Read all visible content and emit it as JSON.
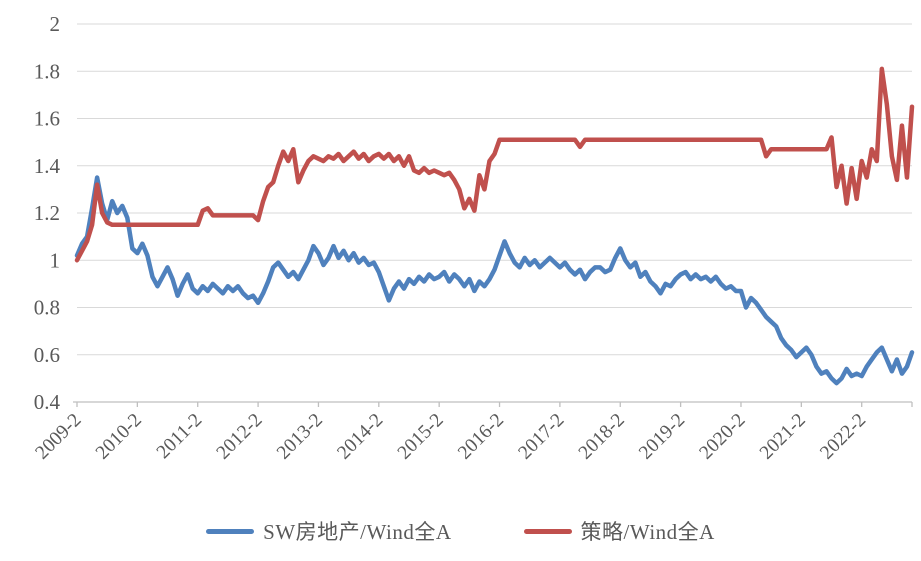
{
  "chart_data": {
    "type": "line",
    "title": "",
    "xlabel": "",
    "ylabel": "",
    "x_start": "2009-02",
    "x_step": "1 month",
    "x_tick_labels": [
      "2009-2",
      "2010-2",
      "2011-2",
      "2012-2",
      "2013-2",
      "2014-2",
      "2015-2",
      "2016-2",
      "2017-2",
      "2018-2",
      "2019-2",
      "2020-2",
      "2021-2",
      "2022-2"
    ],
    "x_tick_month_indices": [
      0,
      12,
      24,
      36,
      48,
      60,
      72,
      84,
      96,
      108,
      120,
      132,
      144,
      156
    ],
    "y_ticks": [
      0.4,
      0.6,
      0.8,
      1.0,
      1.2,
      1.4,
      1.6,
      1.8,
      2.0
    ],
    "y_tick_labels": [
      "0.4",
      "0.6",
      "0.8",
      "1",
      "1.2",
      "1.4",
      "1.6",
      "1.8",
      "2"
    ],
    "ylim": [
      0.4,
      2.0
    ],
    "grid": "horizontal",
    "legend_position": "bottom",
    "series": [
      {
        "name": "SW房地产/Wind全A",
        "color": "#4f81bd",
        "values": [
          1.02,
          1.07,
          1.1,
          1.22,
          1.35,
          1.24,
          1.17,
          1.25,
          1.2,
          1.23,
          1.18,
          1.05,
          1.03,
          1.07,
          1.02,
          0.93,
          0.89,
          0.93,
          0.97,
          0.92,
          0.85,
          0.9,
          0.94,
          0.88,
          0.86,
          0.89,
          0.87,
          0.9,
          0.88,
          0.86,
          0.89,
          0.87,
          0.89,
          0.86,
          0.84,
          0.85,
          0.82,
          0.86,
          0.91,
          0.97,
          0.99,
          0.96,
          0.93,
          0.95,
          0.92,
          0.96,
          1.0,
          1.06,
          1.03,
          0.98,
          1.01,
          1.06,
          1.01,
          1.04,
          1.0,
          1.03,
          0.99,
          1.01,
          0.98,
          0.99,
          0.95,
          0.89,
          0.83,
          0.88,
          0.91,
          0.88,
          0.92,
          0.9,
          0.93,
          0.91,
          0.94,
          0.92,
          0.93,
          0.95,
          0.91,
          0.94,
          0.92,
          0.89,
          0.92,
          0.87,
          0.91,
          0.89,
          0.92,
          0.96,
          1.02,
          1.08,
          1.03,
          0.99,
          0.97,
          1.01,
          0.98,
          1.0,
          0.97,
          0.99,
          1.01,
          0.99,
          0.97,
          0.99,
          0.96,
          0.94,
          0.96,
          0.92,
          0.95,
          0.97,
          0.97,
          0.95,
          0.96,
          1.01,
          1.05,
          1.0,
          0.97,
          0.99,
          0.93,
          0.95,
          0.91,
          0.89,
          0.86,
          0.9,
          0.89,
          0.92,
          0.94,
          0.95,
          0.92,
          0.94,
          0.92,
          0.93,
          0.91,
          0.93,
          0.9,
          0.88,
          0.89,
          0.87,
          0.87,
          0.8,
          0.84,
          0.82,
          0.79,
          0.76,
          0.74,
          0.72,
          0.67,
          0.64,
          0.62,
          0.59,
          0.61,
          0.63,
          0.6,
          0.55,
          0.52,
          0.53,
          0.5,
          0.48,
          0.5,
          0.54,
          0.51,
          0.52,
          0.51,
          0.55,
          0.58,
          0.61,
          0.63,
          0.58,
          0.53,
          0.58,
          0.52,
          0.55,
          0.61
        ]
      },
      {
        "name": "策略/Wind全A",
        "color": "#c0504d",
        "values": [
          1.0,
          1.04,
          1.08,
          1.15,
          1.32,
          1.2,
          1.16,
          1.15,
          1.15,
          1.15,
          1.15,
          1.15,
          1.15,
          1.15,
          1.15,
          1.15,
          1.15,
          1.15,
          1.15,
          1.15,
          1.15,
          1.15,
          1.15,
          1.15,
          1.15,
          1.21,
          1.22,
          1.19,
          1.19,
          1.19,
          1.19,
          1.19,
          1.19,
          1.19,
          1.19,
          1.19,
          1.17,
          1.25,
          1.31,
          1.33,
          1.4,
          1.46,
          1.42,
          1.47,
          1.33,
          1.38,
          1.42,
          1.44,
          1.43,
          1.42,
          1.44,
          1.43,
          1.45,
          1.42,
          1.44,
          1.46,
          1.43,
          1.45,
          1.42,
          1.44,
          1.45,
          1.43,
          1.45,
          1.42,
          1.44,
          1.4,
          1.44,
          1.38,
          1.37,
          1.39,
          1.37,
          1.38,
          1.37,
          1.36,
          1.37,
          1.34,
          1.3,
          1.22,
          1.26,
          1.21,
          1.36,
          1.3,
          1.42,
          1.45,
          1.51,
          1.51,
          1.51,
          1.51,
          1.51,
          1.51,
          1.51,
          1.51,
          1.51,
          1.51,
          1.51,
          1.51,
          1.51,
          1.51,
          1.51,
          1.51,
          1.48,
          1.51,
          1.51,
          1.51,
          1.51,
          1.51,
          1.51,
          1.51,
          1.51,
          1.51,
          1.51,
          1.51,
          1.51,
          1.51,
          1.51,
          1.51,
          1.51,
          1.51,
          1.51,
          1.51,
          1.51,
          1.51,
          1.51,
          1.51,
          1.51,
          1.51,
          1.51,
          1.51,
          1.51,
          1.51,
          1.51,
          1.51,
          1.51,
          1.51,
          1.51,
          1.51,
          1.51,
          1.44,
          1.47,
          1.47,
          1.47,
          1.47,
          1.47,
          1.47,
          1.47,
          1.47,
          1.47,
          1.47,
          1.47,
          1.47,
          1.52,
          1.31,
          1.4,
          1.24,
          1.39,
          1.26,
          1.42,
          1.35,
          1.47,
          1.42,
          1.81,
          1.66,
          1.44,
          1.34,
          1.57,
          1.35,
          1.65
        ]
      }
    ],
    "line_width": 4.5,
    "axis_color": "#bfbfbf",
    "grid_color": "#d9d9d9",
    "tick_label_color": "#595959"
  },
  "legend": {
    "items": [
      {
        "label": "SW房地产/Wind全A",
        "color": "#4f81bd"
      },
      {
        "label": "策略/Wind全A",
        "color": "#c0504d"
      }
    ]
  }
}
